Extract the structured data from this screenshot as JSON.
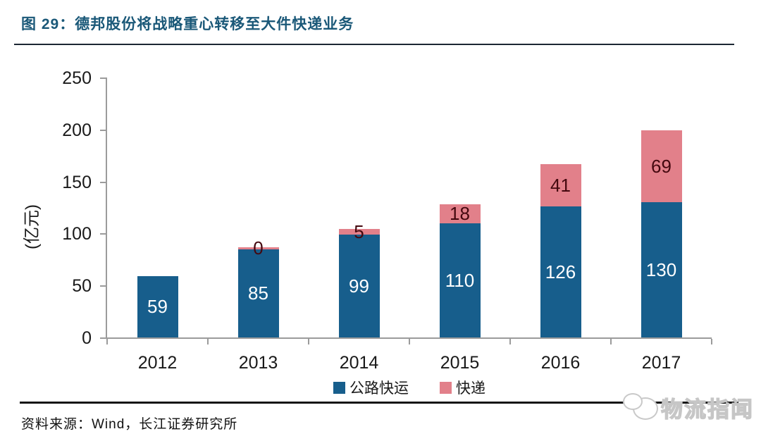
{
  "figure": {
    "title": "图 29：德邦股份将战略重心转移至大件快递业务",
    "source": "资料来源：Wind，长江证券研究所"
  },
  "watermark": {
    "icon": "speech-bubbles-logo",
    "text": "物流指闻"
  },
  "colors": {
    "title_text": "#1A5878",
    "title_rule": "#1C2733",
    "bottom_rule": "#141414",
    "axis": "#9B9B9B",
    "road_bar": "#175E8C",
    "express_bar": "#E2808A",
    "road_label": "#FFFFFF",
    "express_label": "#44080F"
  },
  "chart_data": {
    "type": "bar",
    "stacked": true,
    "title": "德邦股份将战略重心转移至大件快递业务",
    "categories": [
      "2012",
      "2013",
      "2014",
      "2015",
      "2016",
      "2017"
    ],
    "series": [
      {
        "name": "公路快运",
        "values": [
          59,
          85,
          99,
          110,
          126,
          130
        ]
      },
      {
        "name": "快递",
        "values": [
          null,
          0,
          5,
          18,
          41,
          69
        ]
      }
    ],
    "xlabel": "",
    "ylabel": "(亿元)",
    "ylim": [
      0,
      250
    ],
    "ytick_step": 50,
    "yticks": [
      0,
      50,
      100,
      150,
      200,
      250
    ],
    "grid": false,
    "legend_position": "bottom"
  }
}
